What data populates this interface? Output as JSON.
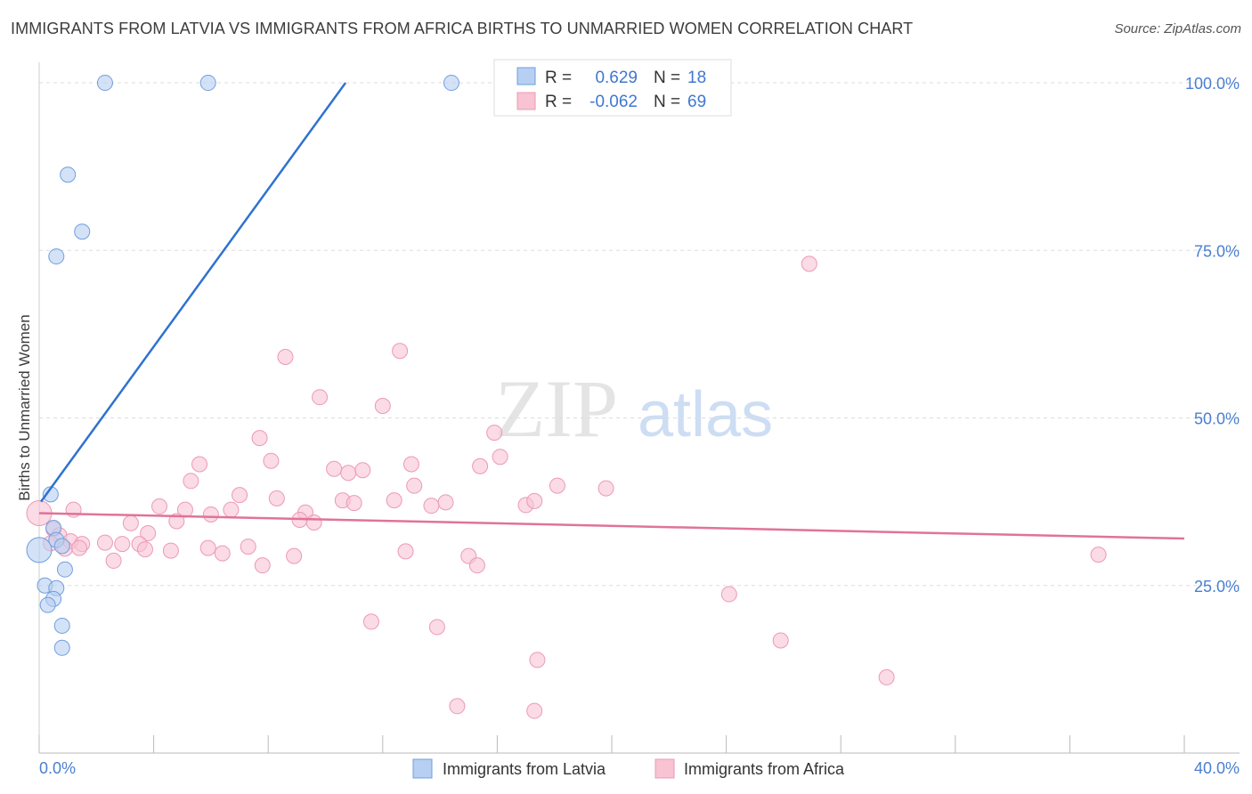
{
  "title": "IMMIGRANTS FROM LATVIA VS IMMIGRANTS FROM AFRICA BIRTHS TO UNMARRIED WOMEN CORRELATION CHART",
  "source": "Source: ZipAtlas.com",
  "watermark": {
    "zip": "ZIP",
    "atlas": "atlas"
  },
  "colors": {
    "latvia_fill": "#b7cff2",
    "latvia_stroke": "#6f9fde",
    "latvia_line": "#2f72d0",
    "africa_fill": "#f8c3d3",
    "africa_stroke": "#ec9ab4",
    "africa_line": "#e07399",
    "grid": "#dddddd",
    "tick_text": "#4a7fd0"
  },
  "legend": {
    "rows": [
      {
        "r_label": "R =",
        "r_value": "0.629",
        "n_label": "N =",
        "n_value": "18"
      },
      {
        "r_label": "R =",
        "r_value": "-0.062",
        "n_label": "N =",
        "n_value": "69"
      }
    ]
  },
  "chart_data": {
    "type": "scatter",
    "title": "IMMIGRANTS FROM LATVIA VS IMMIGRANTS FROM AFRICA BIRTHS TO UNMARRIED WOMEN CORRELATION CHART",
    "xlabel": "",
    "ylabel": "Births to Unmarried Women",
    "xlim": [
      0,
      40
    ],
    "ylim": [
      0,
      102
    ],
    "x_tick_labels": [
      "0.0%",
      "40.0%"
    ],
    "y_ticks": [
      25,
      50,
      75,
      100
    ],
    "y_tick_labels": [
      "25.0%",
      "50.0%",
      "75.0%",
      "100.0%"
    ],
    "series": [
      {
        "name": "Immigrants from Latvia",
        "r": 0.629,
        "n": 18,
        "trend": {
          "x0": 0.0,
          "y0": 37.5,
          "x1": 10.7,
          "y1": 100.0
        },
        "points": [
          [
            2.3,
            100
          ],
          [
            5.9,
            100
          ],
          [
            14.4,
            100
          ],
          [
            1.0,
            86.3
          ],
          [
            1.5,
            77.8
          ],
          [
            0.6,
            74.1
          ],
          [
            0.4,
            38.6
          ],
          [
            0.5,
            33.6
          ],
          [
            0.6,
            31.8
          ],
          [
            0.8,
            30.9
          ],
          [
            0.0,
            30.3
          ],
          [
            0.9,
            27.4
          ],
          [
            0.2,
            25.0
          ],
          [
            0.6,
            24.6
          ],
          [
            0.5,
            23.0
          ],
          [
            0.3,
            22.1
          ],
          [
            0.8,
            19.0
          ],
          [
            0.8,
            15.7
          ]
        ]
      },
      {
        "name": "Immigrants from Africa",
        "r": -0.062,
        "n": 69,
        "trend": {
          "x0": 0.0,
          "y0": 35.8,
          "x1": 40.0,
          "y1": 32.0
        },
        "points": [
          [
            26.9,
            73.0
          ],
          [
            12.6,
            60.0
          ],
          [
            8.6,
            59.1
          ],
          [
            9.8,
            53.1
          ],
          [
            12.0,
            51.8
          ],
          [
            15.9,
            47.8
          ],
          [
            7.7,
            47.0
          ],
          [
            16.1,
            44.2
          ],
          [
            8.1,
            43.6
          ],
          [
            5.6,
            43.1
          ],
          [
            13.0,
            43.1
          ],
          [
            10.3,
            42.4
          ],
          [
            10.8,
            41.8
          ],
          [
            11.3,
            42.2
          ],
          [
            15.4,
            42.8
          ],
          [
            5.3,
            40.6
          ],
          [
            13.1,
            39.9
          ],
          [
            18.1,
            39.9
          ],
          [
            19.8,
            39.5
          ],
          [
            7.0,
            38.5
          ],
          [
            8.3,
            38.0
          ],
          [
            10.6,
            37.7
          ],
          [
            11.0,
            37.3
          ],
          [
            12.4,
            37.7
          ],
          [
            14.2,
            37.4
          ],
          [
            13.7,
            36.9
          ],
          [
            17.0,
            37.0
          ],
          [
            17.3,
            37.6
          ],
          [
            1.2,
            36.3
          ],
          [
            4.2,
            36.8
          ],
          [
            5.1,
            36.3
          ],
          [
            6.7,
            36.3
          ],
          [
            6.0,
            35.6
          ],
          [
            9.3,
            35.9
          ],
          [
            9.1,
            34.8
          ],
          [
            9.6,
            34.4
          ],
          [
            3.2,
            34.3
          ],
          [
            4.8,
            34.6
          ],
          [
            3.8,
            32.8
          ],
          [
            0.0,
            35.8
          ],
          [
            0.5,
            33.4
          ],
          [
            0.7,
            32.5
          ],
          [
            1.1,
            31.6
          ],
          [
            1.5,
            31.2
          ],
          [
            2.3,
            31.4
          ],
          [
            2.9,
            31.2
          ],
          [
            3.5,
            31.2
          ],
          [
            0.4,
            31.3
          ],
          [
            0.9,
            30.5
          ],
          [
            1.4,
            30.6
          ],
          [
            3.7,
            30.4
          ],
          [
            4.6,
            30.2
          ],
          [
            5.9,
            30.6
          ],
          [
            7.3,
            30.8
          ],
          [
            6.4,
            29.8
          ],
          [
            8.9,
            29.4
          ],
          [
            12.8,
            30.1
          ],
          [
            15.0,
            29.4
          ],
          [
            15.3,
            28.0
          ],
          [
            37.0,
            29.6
          ],
          [
            2.6,
            28.7
          ],
          [
            7.8,
            28.0
          ],
          [
            24.1,
            23.7
          ],
          [
            11.6,
            19.6
          ],
          [
            13.9,
            18.8
          ],
          [
            25.9,
            16.8
          ],
          [
            17.4,
            13.9
          ],
          [
            29.6,
            11.3
          ],
          [
            14.6,
            7.0
          ],
          [
            17.3,
            6.3
          ]
        ]
      }
    ]
  },
  "bottom_legend": {
    "items": [
      {
        "label": "Immigrants from Latvia"
      },
      {
        "label": "Immigrants from Africa"
      }
    ]
  }
}
